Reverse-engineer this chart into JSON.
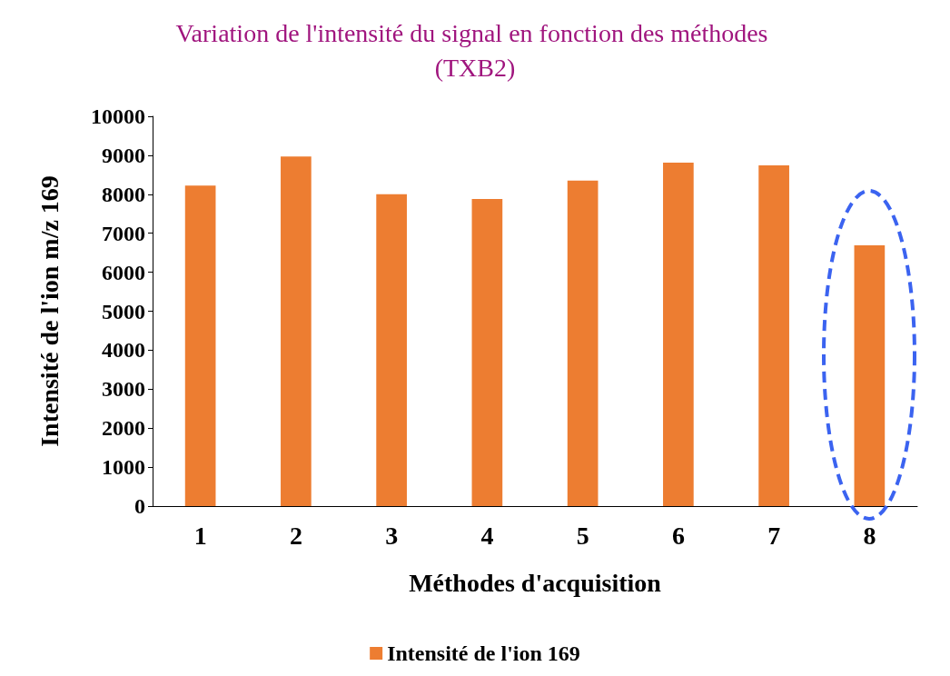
{
  "chart_data": {
    "type": "bar",
    "title": "Variation de l'intensité du signal en fonction des méthodes (TXB2)",
    "xlabel": "Méthodes d'acquisition",
    "ylabel": "Intensité de l'ion m/z 169",
    "categories": [
      "1",
      "2",
      "3",
      "4",
      "5",
      "6",
      "7",
      "8"
    ],
    "series": [
      {
        "name": "Intensité de l'ion 169",
        "color": "#ed7d31",
        "values": [
          8220,
          8970,
          8000,
          7880,
          8350,
          8810,
          8740,
          6690
        ]
      }
    ],
    "ylim": [
      0,
      10000
    ],
    "yticks": [
      0,
      1000,
      2000,
      3000,
      4000,
      5000,
      6000,
      7000,
      8000,
      9000,
      10000
    ],
    "grid": false,
    "legend": "bottom"
  }
}
